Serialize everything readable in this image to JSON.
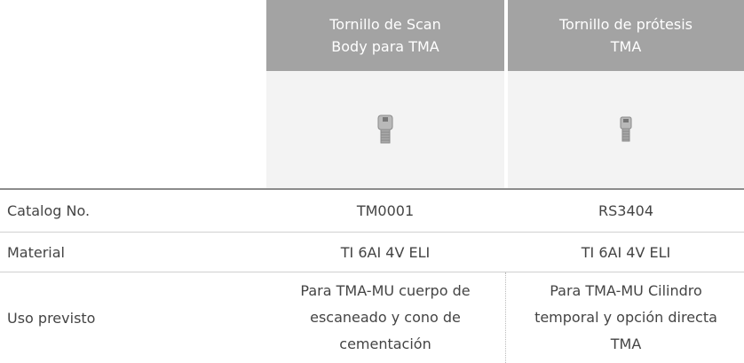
{
  "columns": [
    "Tornillo de Scan Body para TMA",
    "Tornillo de prótesis TMA"
  ],
  "rows": [
    [
      "Catalog No.",
      "TM0001",
      "RS3404"
    ],
    [
      "Material",
      "TI 6AI 4V ELI",
      "TI 6AI 4V ELI"
    ],
    [
      "Uso previsto",
      "Para TMA-MU cuerpo de escaneado y cono de cementación",
      "Para TMA-MU Cilindro temporal y opción directa TMA"
    ]
  ]
}
